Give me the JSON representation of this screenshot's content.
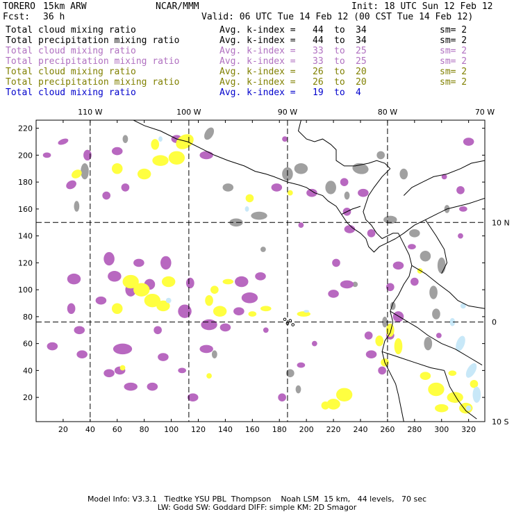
{
  "header": {
    "model": "TORERO",
    "resolution": "15km ARW",
    "org": "NCAR/MMM",
    "init": "Init: 18 UTC Sun 12 Feb 12",
    "fcst_label": "Fcst:",
    "fcst_value": "36 h",
    "valid": "Valid: 06 UTC Tue 14 Feb 12 (00 CST Tue 14 Feb 12)"
  },
  "legend": [
    {
      "name": "Total cloud mixing ratio",
      "avg": "Avg. k-index =",
      "hi": "44",
      "to": "to",
      "lo": "34",
      "sm": "sm= 2",
      "color": "#000000"
    },
    {
      "name": "Total precipitation mixing ratio",
      "avg": "Avg. k-index =",
      "hi": "44",
      "to": "to",
      "lo": "34",
      "sm": "sm= 2",
      "color": "#000000"
    },
    {
      "name": "Total cloud mixing ratio",
      "avg": "Avg. k-index =",
      "hi": "33",
      "to": "to",
      "lo": "25",
      "sm": "sm= 2",
      "color": "#b070c0"
    },
    {
      "name": "Total precipitation mixing ratio",
      "avg": "Avg. k-index =",
      "hi": "33",
      "to": "to",
      "lo": "25",
      "sm": "sm= 2",
      "color": "#b070c0"
    },
    {
      "name": "Total cloud mixing ratio",
      "avg": "Avg. k-index =",
      "hi": "26",
      "to": "to",
      "lo": "20",
      "sm": "sm= 2",
      "color": "#808000"
    },
    {
      "name": "Total precipitation mixing ratio",
      "avg": "Avg. k-index =",
      "hi": "26",
      "to": "to",
      "lo": "20",
      "sm": "sm= 2",
      "color": "#808000"
    },
    {
      "name": "Total cloud mixing ratio",
      "avg": "Avg. k-index =",
      "hi": "19",
      "to": "to",
      "lo": "4",
      "sm": "",
      "color": "#0000cc"
    }
  ],
  "map": {
    "lon_labels": [
      "110 W",
      "100 W",
      "90 W",
      "80 W",
      "70 W"
    ],
    "lat_labels": [
      "10 N",
      "0",
      "10 S"
    ],
    "x_ticks": [
      "20",
      "40",
      "60",
      "80",
      "100",
      "120",
      "140",
      "160",
      "180",
      "200",
      "220",
      "240",
      "260",
      "280",
      "300",
      "320"
    ],
    "y_ticks": [
      "220",
      "200",
      "180",
      "160",
      "140",
      "120",
      "100",
      "80",
      "60",
      "40",
      "20"
    ],
    "x_range": [
      0,
      332
    ],
    "y_range": [
      2,
      226
    ],
    "grid_x": [
      40,
      113,
      186,
      260
    ],
    "grid_y": [
      150,
      76
    ],
    "colors": {
      "gray": "#a0a0a0",
      "purple": "#b868c0",
      "yellow": "#ffff40",
      "lightblue": "#c8e8f8",
      "coast": "#000000"
    }
  },
  "footer": {
    "line1": "Model Info: V3.3.1   Tiedtke YSU PBL  Thompson    Noah LSM  15 km,   44 levels,   70 sec",
    "line2": "LW: Godd SW: Goddard DIFF: simple KM: 2D Smagor"
  }
}
